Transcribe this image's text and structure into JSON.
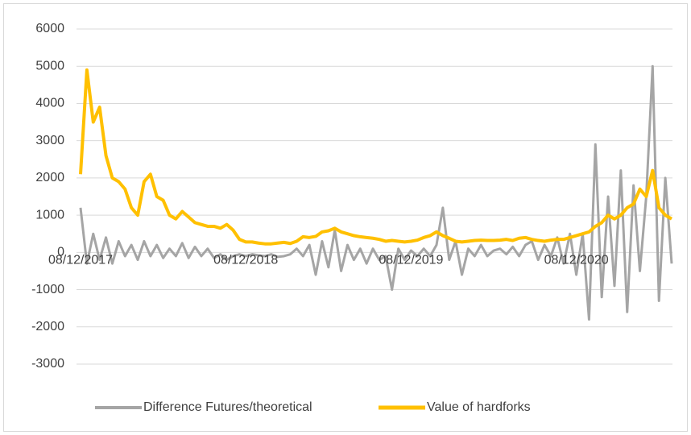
{
  "chart_data": {
    "type": "line",
    "categories": [
      "08/12/2017",
      null,
      null,
      null,
      null,
      null,
      null,
      null,
      null,
      null,
      null,
      null,
      null,
      null,
      null,
      null,
      null,
      null,
      null,
      null,
      null,
      null,
      null,
      null,
      null,
      null,
      "08/12/2018",
      null,
      null,
      null,
      null,
      null,
      null,
      null,
      null,
      null,
      null,
      null,
      null,
      null,
      null,
      null,
      null,
      null,
      null,
      null,
      null,
      null,
      null,
      null,
      null,
      null,
      "08/12/2019",
      null,
      null,
      null,
      null,
      null,
      null,
      null,
      null,
      null,
      null,
      null,
      null,
      null,
      null,
      null,
      null,
      null,
      null,
      null,
      null,
      null,
      null,
      null,
      null,
      null,
      "08/12/2020",
      null,
      null,
      null,
      null,
      null,
      null,
      null,
      null,
      null,
      null,
      null,
      null,
      null,
      null,
      null
    ],
    "series": [
      {
        "name": "Difference Futures/theoretical",
        "color": "#a5a5a5",
        "values": [
          1200,
          -300,
          500,
          -200,
          400,
          -300,
          300,
          -100,
          200,
          -200,
          300,
          -100,
          200,
          -150,
          100,
          -100,
          250,
          -150,
          150,
          -100,
          100,
          -150,
          -50,
          -200,
          -100,
          -50,
          -100,
          -50,
          -80,
          -100,
          -50,
          -120,
          -100,
          -50,
          100,
          -100,
          200,
          -600,
          300,
          -400,
          600,
          -500,
          200,
          -200,
          100,
          -300,
          100,
          -200,
          -100,
          -1000,
          100,
          -200,
          50,
          -100,
          100,
          -100,
          200,
          1200,
          -200,
          300,
          -600,
          100,
          -100,
          200,
          -100,
          50,
          100,
          -50,
          150,
          -100,
          200,
          300,
          -200,
          200,
          -100,
          400,
          -300,
          500,
          -600,
          500,
          -1800,
          2900,
          -1200,
          1500,
          -900,
          2200,
          -1600,
          1800,
          -500,
          1500,
          5000,
          -1300,
          2000,
          -300
        ]
      },
      {
        "name": "Value of hardforks",
        "color": "#ffc000",
        "values": [
          2100,
          4900,
          3500,
          3900,
          2600,
          2000,
          1900,
          1700,
          1200,
          1000,
          1900,
          2100,
          1500,
          1400,
          1000,
          900,
          1100,
          950,
          800,
          750,
          700,
          700,
          650,
          750,
          600,
          350,
          280,
          280,
          250,
          230,
          230,
          250,
          270,
          240,
          300,
          420,
          400,
          430,
          550,
          580,
          650,
          550,
          500,
          450,
          420,
          400,
          380,
          350,
          300,
          320,
          300,
          280,
          300,
          330,
          400,
          450,
          550,
          450,
          380,
          300,
          280,
          300,
          320,
          330,
          320,
          320,
          330,
          350,
          320,
          380,
          400,
          350,
          320,
          300,
          330,
          350,
          350,
          400,
          450,
          500,
          550,
          700,
          800,
          1000,
          900,
          1000,
          1200,
          1300,
          1700,
          1500,
          2200,
          1200,
          1000,
          900
        ]
      }
    ],
    "ylim": [
      -3000,
      6000
    ],
    "yticks": [
      -3000,
      -2000,
      -1000,
      0,
      1000,
      2000,
      3000,
      4000,
      5000,
      6000
    ],
    "grid": true,
    "legend": "bottom"
  }
}
